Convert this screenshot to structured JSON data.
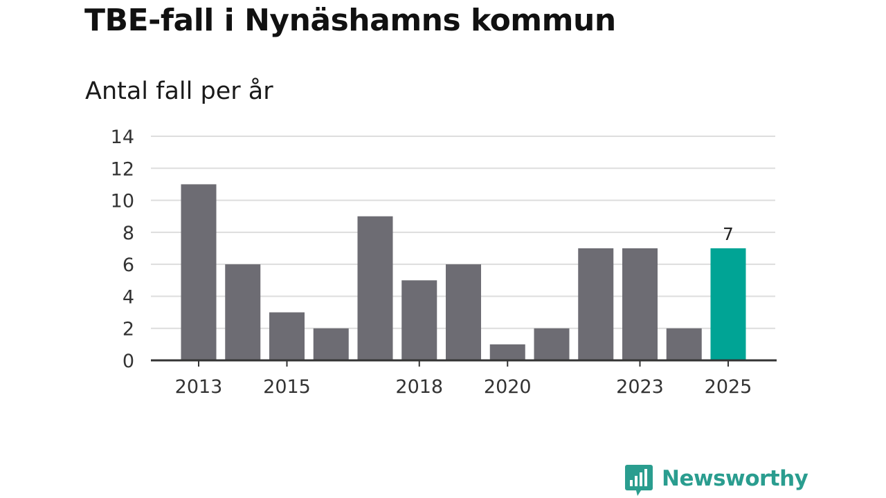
{
  "title": "TBE-fall i Nynäshamns kommun",
  "subtitle": "Antal fall per år",
  "brand": {
    "name": "Newsworthy",
    "icon": "newsworthy-logo-icon",
    "color": "#2a9d8f"
  },
  "colors": {
    "bar": "#6d6c73",
    "highlight": "#00a495",
    "grid": "#dddddd",
    "axis": "#333333"
  },
  "chart_data": {
    "type": "bar",
    "title": "TBE-fall i Nynäshamns kommun",
    "subtitle": "Antal fall per år",
    "xlabel": "",
    "ylabel": "",
    "categories": [
      "2013",
      "2014",
      "2015",
      "2016",
      "2017",
      "2018",
      "2019",
      "2020",
      "2021",
      "2022",
      "2023",
      "2024",
      "2025"
    ],
    "values": [
      11,
      6,
      3,
      2,
      9,
      5,
      6,
      1,
      2,
      7,
      7,
      2,
      7
    ],
    "x_tick_labels": [
      "2013",
      "2015",
      "2018",
      "2020",
      "2023",
      "2025"
    ],
    "y_ticks": [
      0,
      2,
      4,
      6,
      8,
      10,
      12,
      14
    ],
    "ylim": [
      0,
      14
    ],
    "grid": true,
    "legend": "none",
    "highlight": {
      "category": "2025",
      "value": 7,
      "label": "7"
    }
  }
}
